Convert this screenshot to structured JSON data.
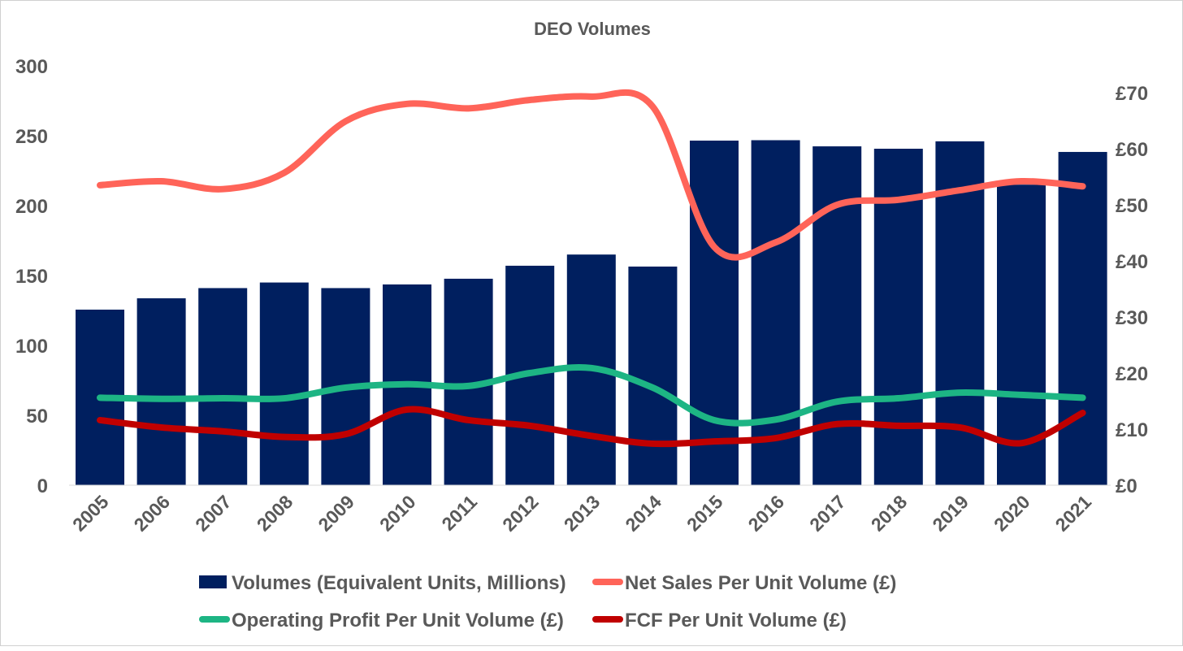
{
  "chart_data": {
    "type": "bar+line",
    "title": "DEO Volumes",
    "categories": [
      "2005",
      "2006",
      "2007",
      "2008",
      "2009",
      "2010",
      "2011",
      "2012",
      "2013",
      "2014",
      "2015",
      "2016",
      "2017",
      "2018",
      "2019",
      "2020",
      "2021"
    ],
    "left_axis": {
      "ylim": [
        0,
        300
      ],
      "ticks": [
        "0",
        "50",
        "100",
        "150",
        "200",
        "250",
        "300"
      ],
      "tick_values": [
        0,
        50,
        100,
        150,
        200,
        250,
        300
      ]
    },
    "right_axis": {
      "ylim": [
        0,
        75
      ],
      "ticks": [
        "£0",
        "£10",
        "£20",
        "£30",
        "£40",
        "£50",
        "£60",
        "£70"
      ],
      "tick_values": [
        0,
        10,
        20,
        30,
        40,
        50,
        60,
        70
      ]
    },
    "series": [
      {
        "name": "Volumes (Equivalent Units, Millions)",
        "type": "bar",
        "axis": "left",
        "color": "#001F5F",
        "values": [
          125.6,
          133.7,
          141,
          145,
          141,
          143.6,
          147.7,
          157,
          165,
          156.4,
          246.5,
          246.8,
          242.4,
          240.7,
          246,
          215,
          238.4
        ]
      },
      {
        "name": "Net Sales Per Unit Volume (£)",
        "type": "line",
        "axis": "right",
        "color": "#FF6459",
        "values": [
          53.5,
          54.2,
          52.8,
          55.7,
          64.9,
          68,
          67.2,
          68.7,
          69.3,
          67.5,
          42.5,
          43.3,
          50,
          50.9,
          52.6,
          54.2,
          53.3
        ]
      },
      {
        "name": "Operating Profit Per Unit Volume (£)",
        "type": "line",
        "axis": "right",
        "color": "#1DB584",
        "values": [
          15.6,
          15.4,
          15.5,
          15.5,
          17.4,
          18,
          17.7,
          20,
          20.9,
          17.4,
          11.6,
          11.7,
          14.9,
          15.5,
          16.5,
          16.1,
          15.6
        ]
      },
      {
        "name": "FCF Per Unit Volume (£)",
        "type": "line",
        "axis": "right",
        "color": "#C00000",
        "values": [
          11.6,
          10.3,
          9.6,
          8.6,
          9.1,
          13.5,
          11.6,
          10.6,
          8.8,
          7.4,
          7.8,
          8.4,
          10.9,
          10.6,
          10.3,
          7.5,
          12.9
        ]
      }
    ],
    "legend": "bottom",
    "grid": false
  }
}
